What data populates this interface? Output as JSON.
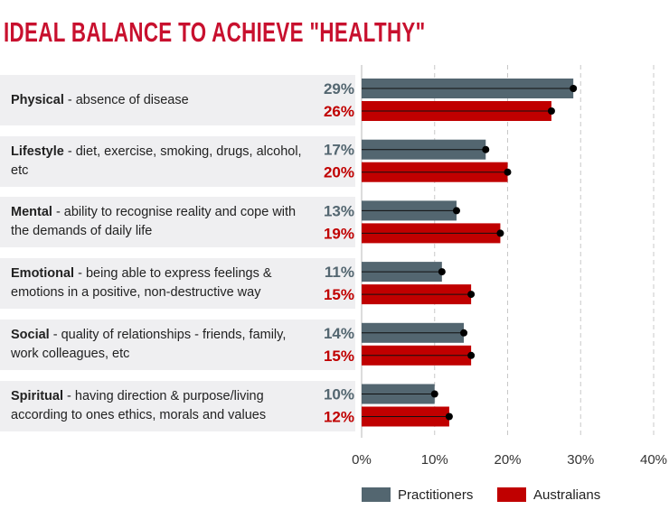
{
  "title": "IDEAL BALANCE TO ACHIEVE \"HEALTHY\"",
  "colors": {
    "practitioners": "#536670",
    "australians": "#c00000",
    "title": "#c8102e",
    "row_bg": "#efeff1"
  },
  "chart_data": {
    "type": "bar",
    "orientation": "horizontal",
    "categories": [
      {
        "name": "Physical",
        "description": " - absence of disease"
      },
      {
        "name": "Lifestyle",
        "description": " - diet, exercise, smoking, drugs, alcohol, etc"
      },
      {
        "name": "Mental",
        "description": " - ability to recognise reality and cope with the demands of daily life"
      },
      {
        "name": "Emotional",
        "description": " - being able to express feelings & emotions in a positive, non-destructive way"
      },
      {
        "name": "Social",
        "description": " - quality of relationships - friends, family, work colleagues, etc"
      },
      {
        "name": "Spiritual",
        "description": " - having direction & purpose/living according to ones ethics, morals and values"
      }
    ],
    "series": [
      {
        "name": "Practitioners",
        "values": [
          29,
          17,
          13,
          11,
          14,
          10
        ],
        "labels": [
          "29%",
          "17%",
          "13%",
          "11%",
          "14%",
          "10%"
        ]
      },
      {
        "name": "Australians",
        "values": [
          26,
          20,
          19,
          15,
          15,
          12
        ],
        "labels": [
          "26%",
          "20%",
          "19%",
          "15%",
          "15%",
          "12%"
        ]
      }
    ],
    "xlim": [
      0,
      40
    ],
    "xticks": [
      "0%",
      "10%",
      "20%",
      "30%",
      "40%"
    ],
    "grid": true,
    "legend_position": "bottom"
  }
}
